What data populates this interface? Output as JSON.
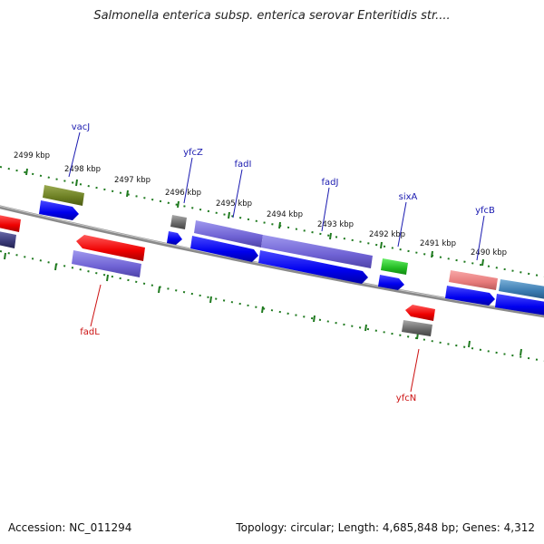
{
  "title": "Salmonella enterica subsp. enterica serovar Enteritidis str....",
  "footer": {
    "accession": "Accession: NC_011294",
    "summary": "Topology: circular; Length: 4,685,848 bp; Genes: 4,312"
  },
  "ticks": [
    {
      "label": "2499 kbp"
    },
    {
      "label": "2498 kbp"
    },
    {
      "label": "2497 kbp"
    },
    {
      "label": "2496 kbp"
    },
    {
      "label": "2495 kbp"
    },
    {
      "label": "2494 kbp"
    },
    {
      "label": "2493 kbp"
    },
    {
      "label": "2492 kbp"
    },
    {
      "label": "2491 kbp"
    },
    {
      "label": "2490 kbp"
    }
  ],
  "gene_labels": [
    {
      "name": "vacJ",
      "strand": "forward"
    },
    {
      "name": "yfcZ",
      "strand": "forward"
    },
    {
      "name": "fadI",
      "strand": "forward"
    },
    {
      "name": "fadJ",
      "strand": "forward"
    },
    {
      "name": "sixA",
      "strand": "forward"
    },
    {
      "name": "yfcB",
      "strand": "forward"
    },
    {
      "name": "fadL",
      "strand": "reverse"
    },
    {
      "name": "yfcN",
      "strand": "reverse"
    }
  ],
  "colors": {
    "forward_label": "#1a1ab0",
    "reverse_label": "#cc1111",
    "backbone": "#8a8a8a",
    "tick": "#1f7a1f"
  }
}
